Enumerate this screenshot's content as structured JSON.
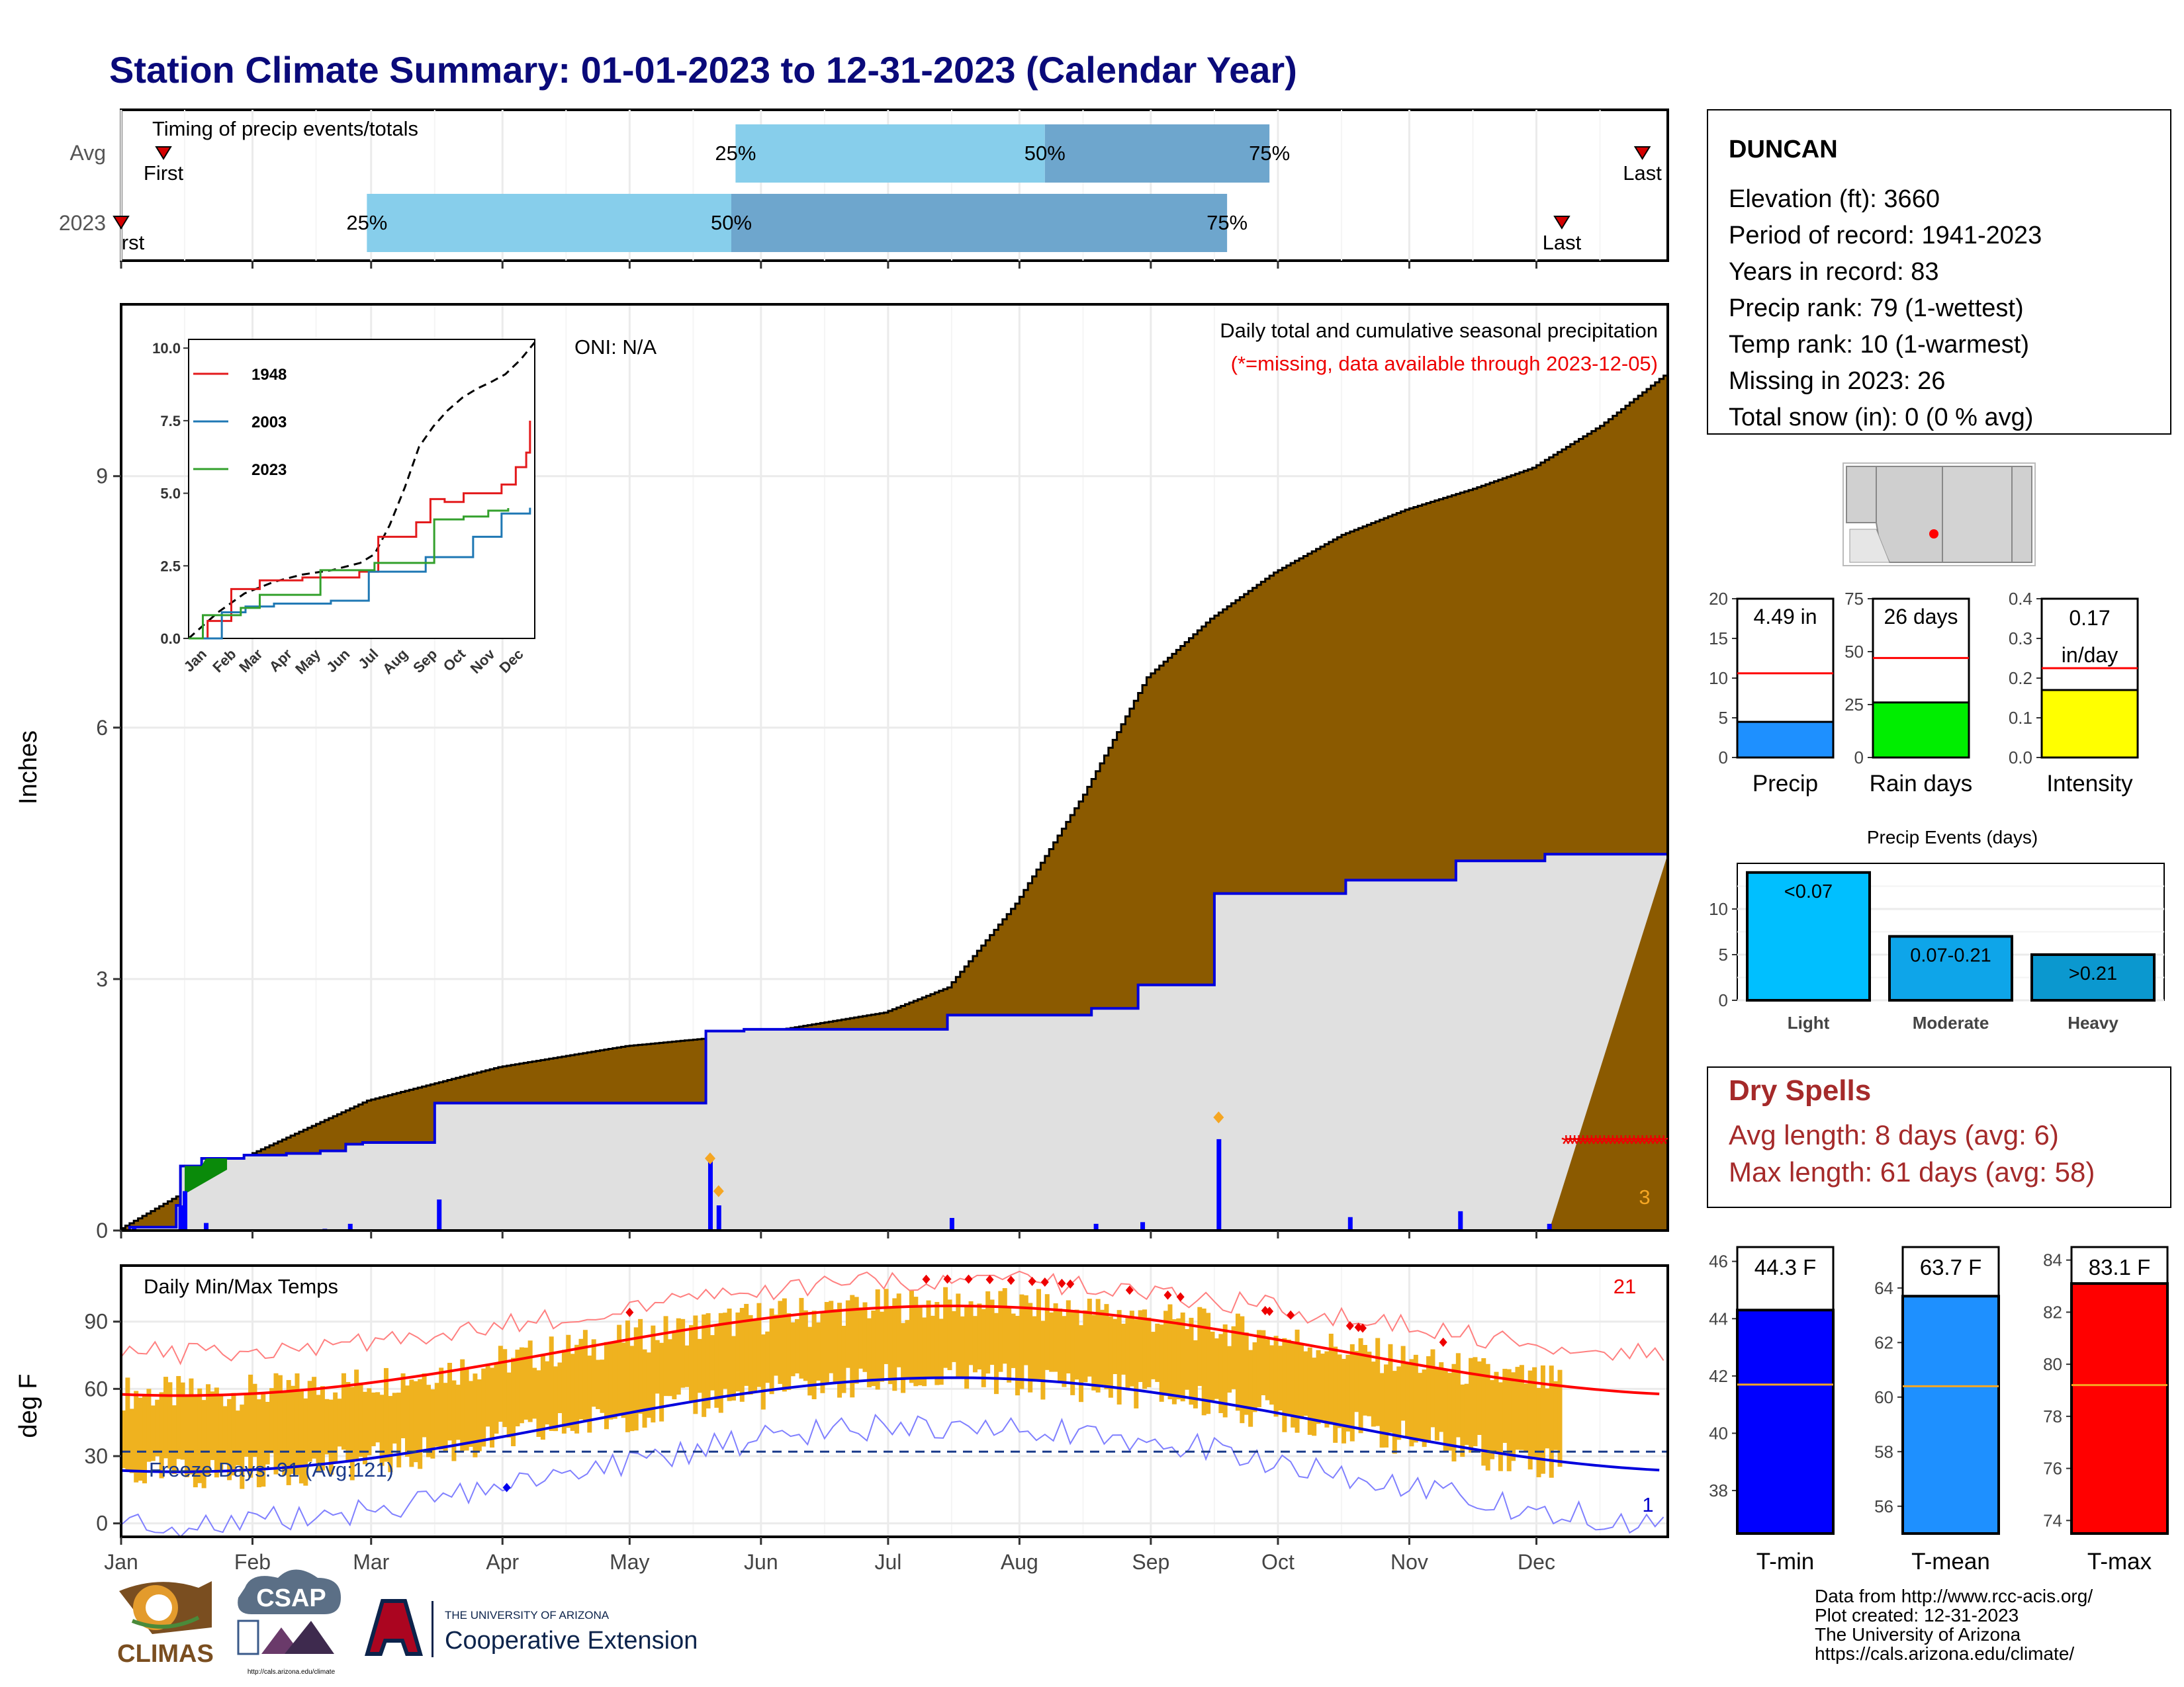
{
  "title": "Station Climate Summary: 01-01-2023 to 12-31-2023 (Calendar Year)",
  "months": [
    "Jan",
    "Feb",
    "Mar",
    "Apr",
    "May",
    "Jun",
    "Jul",
    "Aug",
    "Sep",
    "Oct",
    "Nov",
    "Dec"
  ],
  "timing": {
    "label": "Timing of precip events/totals",
    "rows": [
      "Avg",
      "2023"
    ],
    "pct_labels": [
      "25%",
      "50%",
      "75%"
    ],
    "first_label": "First",
    "first_label_clipped": "rst",
    "last_label": "Last",
    "avg": {
      "first_doy": 10,
      "p25_doy": 145,
      "p50_doy": 218,
      "p75_doy": 271,
      "last_doy": 359
    },
    "y2023": {
      "first_doy": 0,
      "p25_doy": 58,
      "p50_doy": 144,
      "p75_doy": 261,
      "last_doy": 340
    }
  },
  "main": {
    "ylabel": "Inches",
    "oni": "ONI: N/A",
    "caption": "Daily total and cumulative seasonal precipitation",
    "missing_note": "(*=missing, data available through 2023-12-05)",
    "corner_count": "3",
    "yticks": [
      "0",
      "3",
      "6",
      "9"
    ]
  },
  "inset": {
    "years": [
      "1948",
      "2003",
      "2023"
    ],
    "yticks": [
      "0.0",
      "2.5",
      "5.0",
      "7.5",
      "10.0"
    ],
    "months": [
      "Jan",
      "Feb",
      "Mar",
      "Apr",
      "May",
      "Jun",
      "Jul",
      "Aug",
      "Sep",
      "Oct",
      "Nov",
      "Dec"
    ]
  },
  "temps": {
    "label": "Daily Min/Max Temps",
    "ylabel": "deg F",
    "freeze": "Freeze Days: 91 (Avg:121)",
    "hot_count": "21",
    "cold_count": "1",
    "yticks": [
      "0",
      "30",
      "60",
      "90"
    ]
  },
  "station": {
    "name": "DUNCAN",
    "lines": [
      "Elevation (ft): 3660",
      "Period of record: 1941-2023",
      "Years in record: 83",
      "Precip rank: 79 (1-wettest)",
      "Temp rank: 10 (1-warmest)",
      "Missing in 2023: 26",
      "Total snow (in): 0 (0 % avg)"
    ]
  },
  "summary_bars": [
    {
      "label": "Precip",
      "value_text": "4.49 in",
      "value": 4.49,
      "avg": 10.6,
      "max": 20,
      "ticks": [
        "0",
        "5",
        "10",
        "15",
        "20"
      ],
      "color": "#1e90ff"
    },
    {
      "label": "Rain days",
      "value_text": "26 days",
      "value": 26,
      "avg": 47,
      "max": 75,
      "ticks": [
        "0",
        "25",
        "50",
        "75"
      ],
      "color": "#00ee00"
    },
    {
      "label": "Intensity",
      "value_text": "0.17\nin/day",
      "value": 0.17,
      "avg": 0.225,
      "max": 0.4,
      "ticks": [
        "0.0",
        "0.1",
        "0.2",
        "0.3",
        "0.4"
      ],
      "color": "#ffff00"
    }
  ],
  "events": {
    "title": "Precip Events (days)",
    "bars": [
      {
        "label": "Light",
        "range": "<0.07",
        "value": 14,
        "color": "#00bfff"
      },
      {
        "label": "Moderate",
        "range": "0.07-0.21",
        "value": 7,
        "color": "#0ea5e9"
      },
      {
        "label": "Heavy",
        "range": ">0.21",
        "value": 5,
        "color": "#0b98cf"
      }
    ],
    "ticks": [
      "0",
      "5",
      "10"
    ]
  },
  "dry": {
    "title": "Dry Spells",
    "avg": "Avg length: 8 days (avg: 6)",
    "max": "Max length: 61 days (avg: 58)"
  },
  "temp_bars": [
    {
      "label": "T-min",
      "value_text": "44.3 F",
      "value": 44.3,
      "avg": 41.7,
      "min": 36.5,
      "max": 46.5,
      "ticks": [
        "38",
        "40",
        "42",
        "44",
        "46"
      ],
      "color": "#0000ff"
    },
    {
      "label": "T-mean",
      "value_text": "63.7 F",
      "value": 63.7,
      "avg": 60.4,
      "min": 55,
      "max": 65.5,
      "ticks": [
        "56",
        "58",
        "60",
        "62",
        "64"
      ],
      "color": "#1e90ff"
    },
    {
      "label": "T-max",
      "value_text": "83.1 F",
      "value": 83.1,
      "avg": 79.2,
      "min": 73.5,
      "max": 84.5,
      "ticks": [
        "74",
        "76",
        "78",
        "80",
        "82",
        "84"
      ],
      "color": "#ff0000"
    }
  ],
  "credits": [
    "Data from http://www.rcc-acis.org/",
    "Plot created: 12-31-2023",
    "The University of Arizona",
    "https://cals.arizona.edu/climate/"
  ],
  "logos": {
    "climas": "CLIMAS",
    "csap": "CSAP",
    "csap_url": "http://cals.arizona.edu/climate",
    "ua_small": "THE UNIVERSITY OF ARIZONA",
    "ua_big": "Cooperative Extension"
  },
  "colors": {
    "title": "#0a0a7a",
    "fill_normal": "#8b5a00",
    "cum_avg": "#e0e0e0",
    "obs_line": "#0000dd",
    "green": "#0a8a0a",
    "temp_bar": "#efb21f",
    "dry_text": "#a52a2a"
  }
}
